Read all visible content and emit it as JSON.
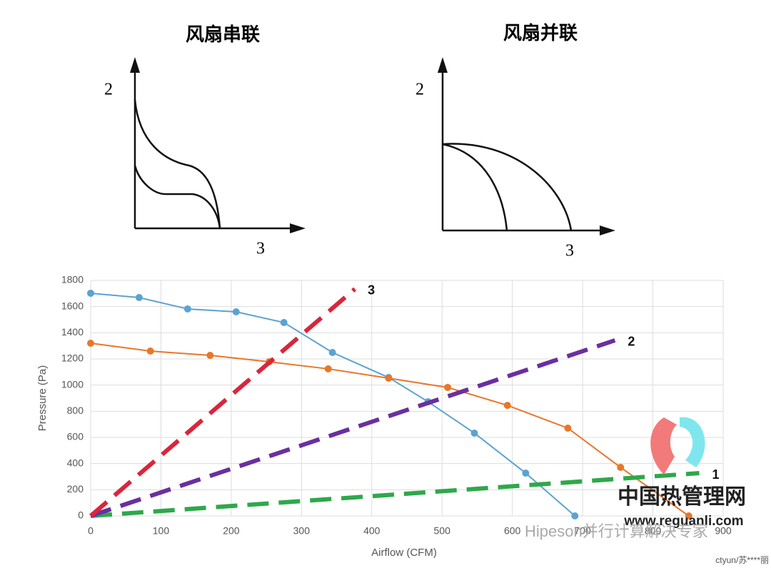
{
  "diagrams": [
    {
      "title": "风扇串联",
      "y_label": "2",
      "x_label": "3"
    },
    {
      "title": "风扇并联",
      "y_label": "2",
      "x_label": "3"
    }
  ],
  "chart_data": {
    "type": "line",
    "xlabel": "Airflow (CFM)",
    "ylabel": "Pressure (Pa)",
    "xlim": [
      0,
      900
    ],
    "xticks": [
      0,
      100,
      200,
      300,
      400,
      500,
      600,
      700,
      800,
      900
    ],
    "ylim": [
      0,
      1800
    ],
    "yticks": [
      0,
      200,
      400,
      600,
      800,
      1000,
      1200,
      1400,
      1600,
      1800
    ],
    "grid": true,
    "series": [
      {
        "color": "#5ba3d0",
        "markers": true,
        "dashed": false,
        "x": [
          0,
          69,
          138,
          207,
          275,
          344,
          424,
          480,
          546,
          619,
          689
        ],
        "values": [
          1702,
          1669,
          1582,
          1560,
          1478,
          1249,
          1058,
          873,
          633,
          327,
          0
        ]
      },
      {
        "color": "#e8772a",
        "markers": true,
        "dashed": false,
        "x": [
          0,
          85,
          170,
          254,
          338,
          424,
          508,
          593,
          679,
          754,
          851
        ],
        "values": [
          1320,
          1260,
          1227,
          1178,
          1124,
          1053,
          982,
          845,
          671,
          371,
          0
        ]
      },
      {
        "name": "1",
        "color": "#2ea84a",
        "markers": false,
        "dashed": true,
        "x": [
          0,
          866
        ],
        "values": [
          0,
          327
        ]
      },
      {
        "name": "2",
        "color": "#6a2fa0",
        "markers": false,
        "dashed": true,
        "x": [
          0,
          746
        ],
        "values": [
          0,
          1342
        ]
      },
      {
        "name": "3",
        "color": "#d9263b",
        "markers": false,
        "dashed": true,
        "x": [
          0,
          376
        ],
        "values": [
          0,
          1735
        ]
      }
    ]
  },
  "watermark": {
    "site_name": "中国热管理网",
    "url": "www.reguanli.com",
    "account": "Hipeson并行计算解决专家",
    "user": "ctyun/苏****丽"
  }
}
